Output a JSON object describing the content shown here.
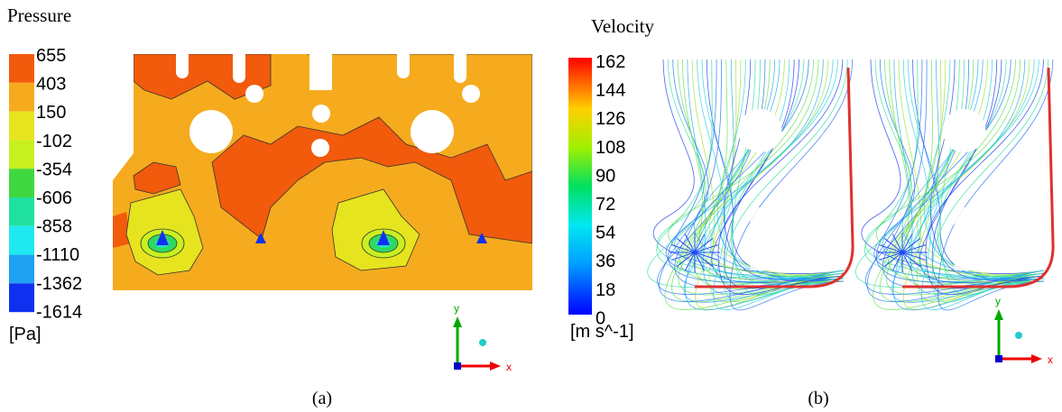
{
  "panel_a": {
    "title": "Pressure",
    "legend_labels": [
      655,
      403,
      150,
      -102,
      -354,
      -606,
      -858,
      -1110,
      -1362,
      -1614
    ],
    "unit": "[Pa]",
    "axis_y": "y",
    "axis_x": "x",
    "caption": "(a)"
  },
  "panel_b": {
    "title": "Velocity",
    "legend_labels": [
      162,
      144,
      126,
      108,
      90,
      72,
      54,
      36,
      18,
      0
    ],
    "unit": "[m s^-1]",
    "axis_y": "y",
    "axis_x": "x",
    "caption": "(b)"
  }
}
